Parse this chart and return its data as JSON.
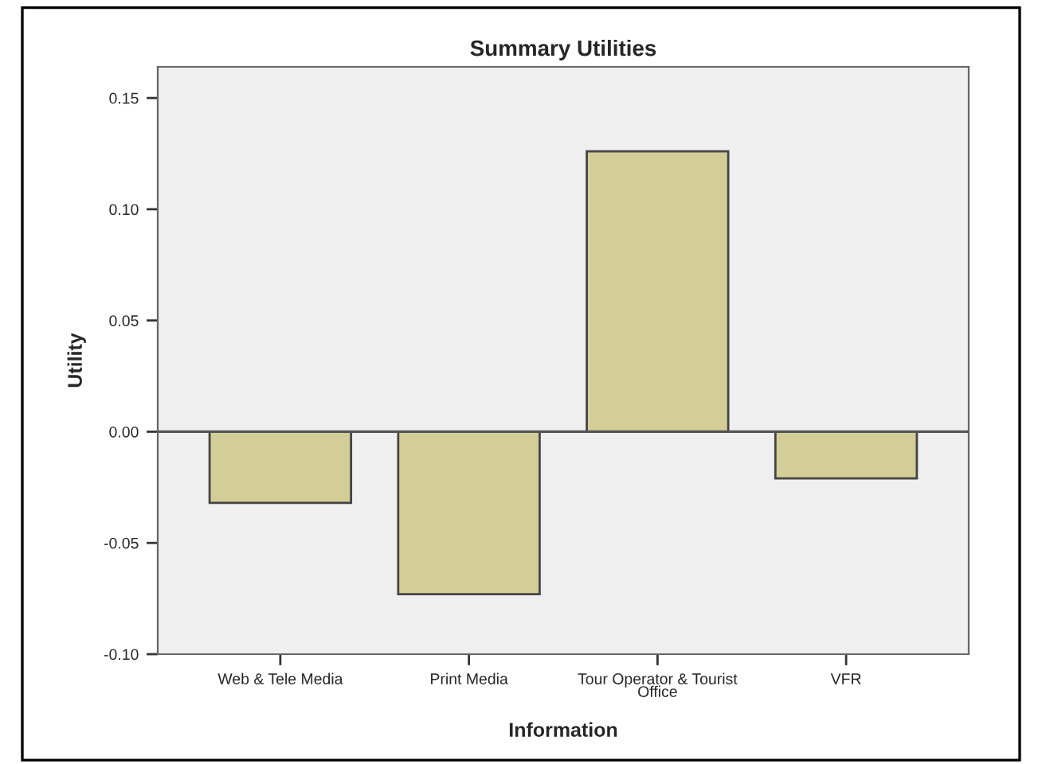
{
  "chart_data": {
    "type": "bar",
    "title": "Summary Utilities",
    "xlabel": "Information",
    "ylabel": "Utility",
    "categories": [
      "Web & Tele Media",
      "Print Media",
      "Tour Operator & Tourist\nOffice",
      "VFR"
    ],
    "values": [
      -0.032,
      -0.073,
      0.126,
      -0.021
    ],
    "color": "#d3ce98",
    "ylim": [
      -0.1,
      0.164
    ],
    "yticks": [
      {
        "value": -0.1,
        "label": "-0.10"
      },
      {
        "value": -0.05,
        "label": "-0.05"
      },
      {
        "value": 0,
        "label": "0.00"
      },
      {
        "value": 0.05,
        "label": "0.05"
      },
      {
        "value": 0.1,
        "label": "0.10"
      },
      {
        "value": 0.15,
        "label": "0.15"
      }
    ],
    "ref_lines": [
      {
        "axis": "y",
        "value": 0,
        "color": "#555555"
      }
    ],
    "grid": false
  }
}
